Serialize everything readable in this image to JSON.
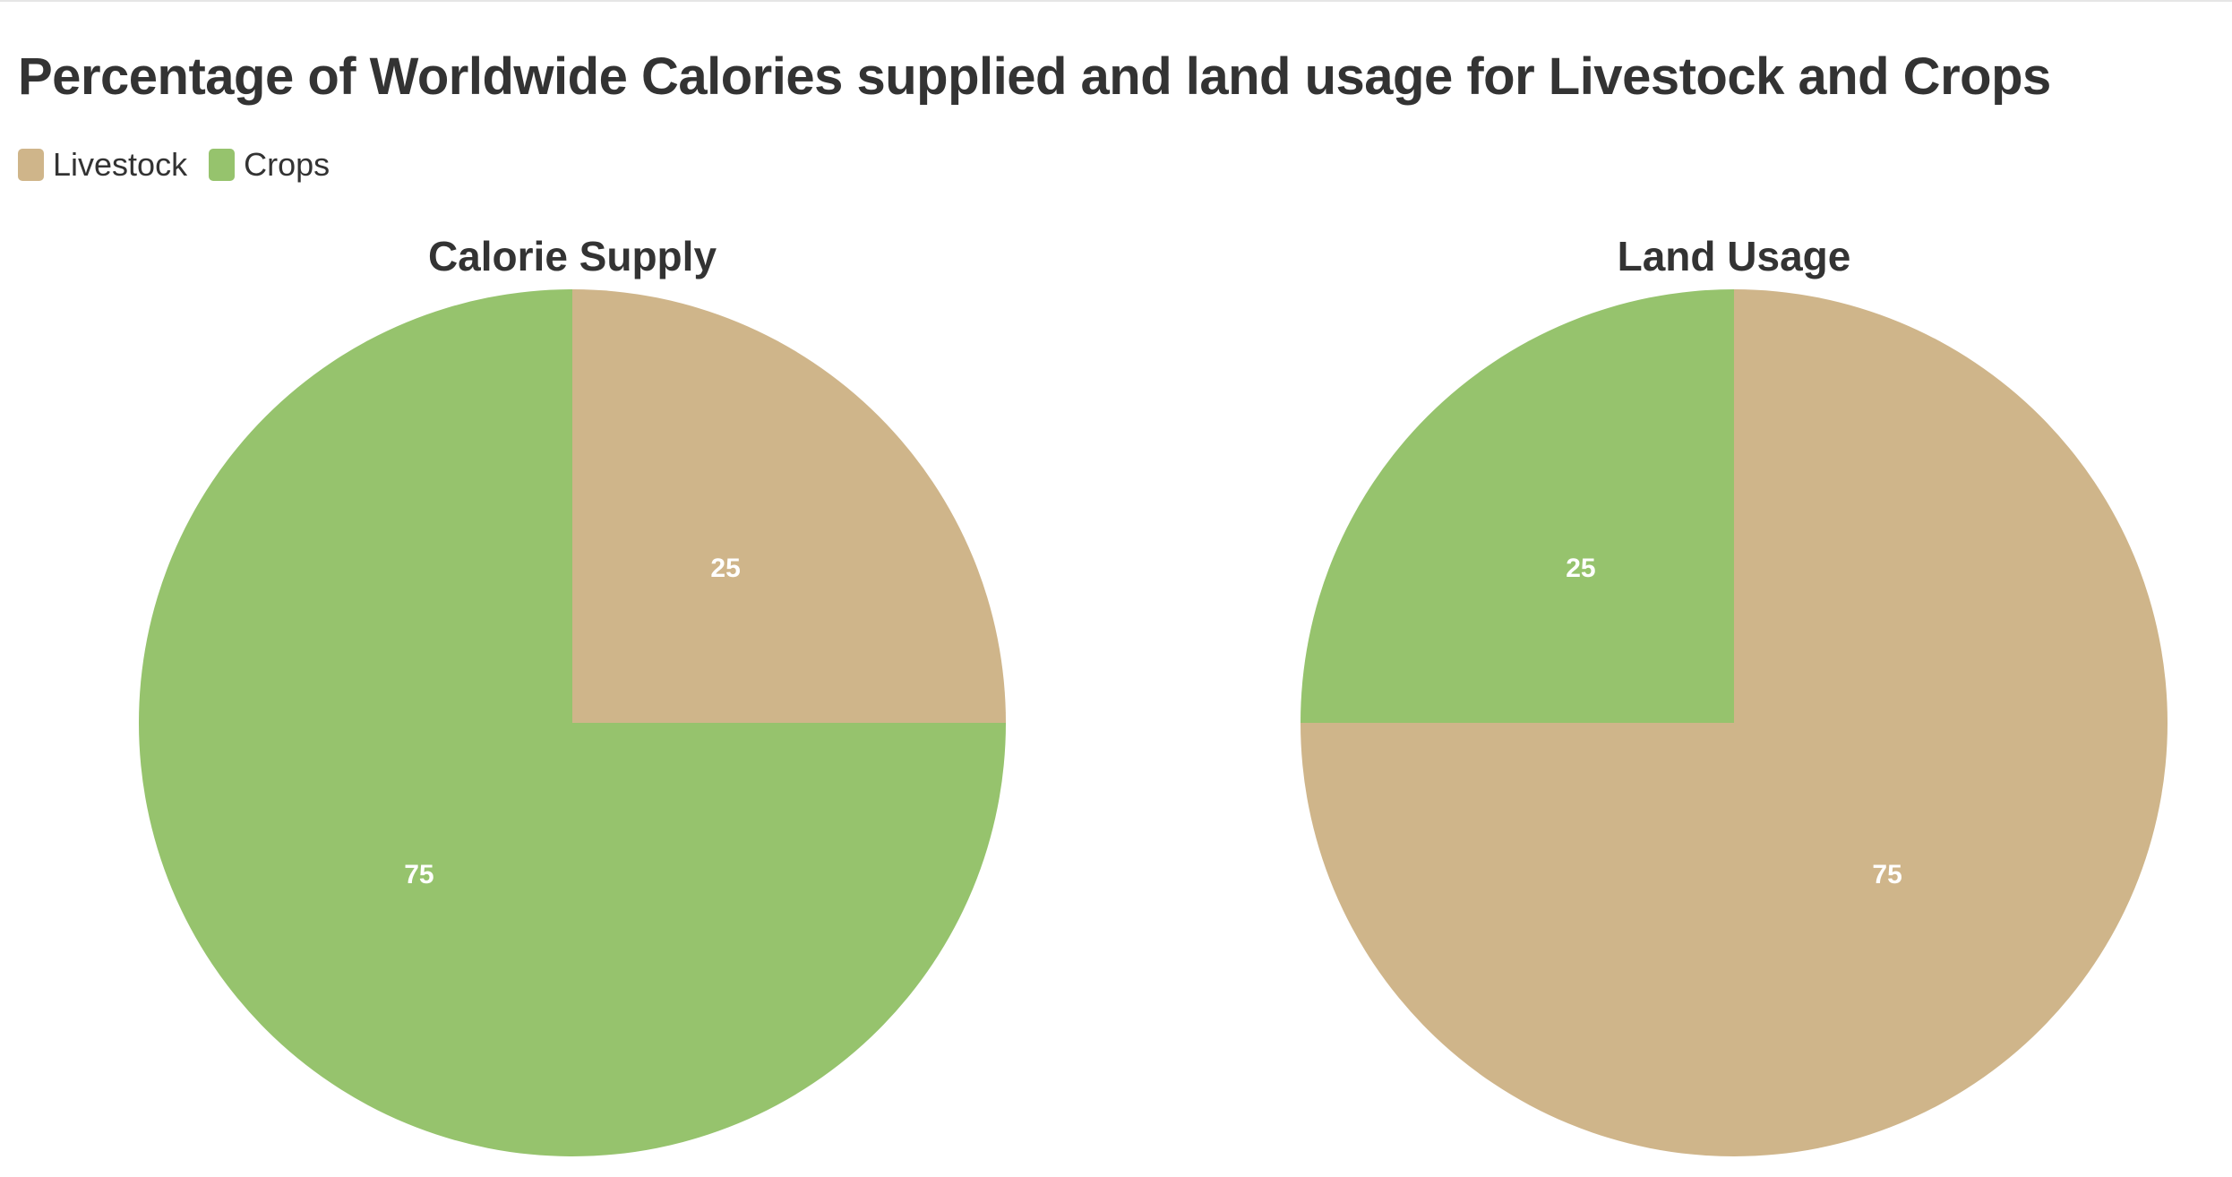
{
  "title": "Percentage of Worldwide Calories supplied and land usage for Livestock and Crops",
  "legend": [
    {
      "label": "Livestock",
      "color": "#cfb58a"
    },
    {
      "label": "Crops",
      "color": "#96c36d"
    }
  ],
  "chart_data": [
    {
      "type": "pie",
      "title": "Calorie Supply",
      "slices": [
        {
          "name": "Livestock",
          "value": 25,
          "label": "25",
          "color": "#cfb58a"
        },
        {
          "name": "Crops",
          "value": 75,
          "label": "75",
          "color": "#96c36d"
        }
      ]
    },
    {
      "type": "pie",
      "title": "Land Usage",
      "slices": [
        {
          "name": "Livestock",
          "value": 75,
          "label": "75",
          "color": "#cfb58a"
        },
        {
          "name": "Crops",
          "value": 25,
          "label": "25",
          "color": "#96c36d"
        }
      ]
    }
  ]
}
